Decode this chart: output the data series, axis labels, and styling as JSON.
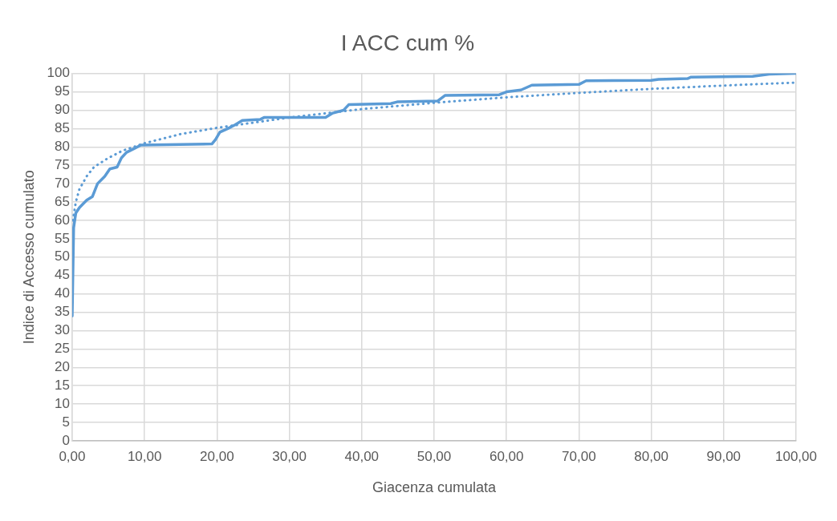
{
  "chart_data": {
    "type": "line",
    "title": "I ACC cum %",
    "xlabel": "Giacenza cumulata",
    "ylabel": "Indice di Accesso cumulato",
    "series": [
      {
        "color": "#5b9bd5",
        "line_style": "solid",
        "x": [
          0,
          0.2,
          0.5,
          1,
          2,
          2.8,
          3.5,
          4.5,
          5.2,
          6.2,
          6.8,
          7.5,
          8.5,
          9.5,
          19.3,
          19.8,
          20.4,
          21.5,
          22.5,
          23.5,
          26,
          26.5,
          35,
          36,
          37.5,
          38.2,
          44,
          45,
          50.5,
          51.5,
          59,
          60,
          62,
          63.5,
          70,
          71,
          80,
          81,
          85,
          85.5,
          94,
          96.3,
          100
        ],
        "values": [
          34,
          58,
          62,
          63.5,
          65.5,
          66.5,
          70,
          72,
          74,
          74.5,
          77,
          78.5,
          79.5,
          80.5,
          80.8,
          82,
          84,
          85,
          86,
          87.2,
          87.5,
          88,
          88,
          89.2,
          90,
          91.5,
          91.8,
          92.3,
          92.5,
          94,
          94.2,
          95,
          95.5,
          96.8,
          97,
          98,
          98.1,
          98.4,
          98.6,
          99,
          99.2,
          99.8,
          100
        ]
      },
      {
        "type": "line",
        "color": "#5b9bd5",
        "line_style": "dotted",
        "x": [
          0.1,
          0.5,
          1,
          2,
          3,
          5,
          7,
          10,
          15,
          20,
          30,
          40,
          50,
          60,
          70,
          80,
          90,
          100
        ],
        "values": [
          60,
          65,
          68.5,
          72,
          74.5,
          77,
          79,
          81,
          83.5,
          85.2,
          88,
          90.3,
          92,
          93.5,
          94.7,
          95.8,
          96.7,
          97.5
        ]
      }
    ],
    "xlim": [
      0,
      100
    ],
    "xticks": [
      {
        "value": 0,
        "label": "0,00"
      },
      {
        "value": 10,
        "label": "10,00"
      },
      {
        "value": 20,
        "label": "20,00"
      },
      {
        "value": 30,
        "label": "30,00"
      },
      {
        "value": 40,
        "label": "40,00"
      },
      {
        "value": 50,
        "label": "50,00"
      },
      {
        "value": 60,
        "label": "60,00"
      },
      {
        "value": 70,
        "label": "70,00"
      },
      {
        "value": 80,
        "label": "80,00"
      },
      {
        "value": 90,
        "label": "90,00"
      },
      {
        "value": 100,
        "label": "100,00"
      }
    ],
    "ylim": [
      0,
      100
    ],
    "yticks": [
      0,
      5,
      10,
      15,
      20,
      25,
      30,
      35,
      40,
      45,
      50,
      55,
      60,
      65,
      70,
      75,
      80,
      85,
      90,
      95,
      100
    ],
    "grid": true,
    "legend": false,
    "marker": "none"
  }
}
